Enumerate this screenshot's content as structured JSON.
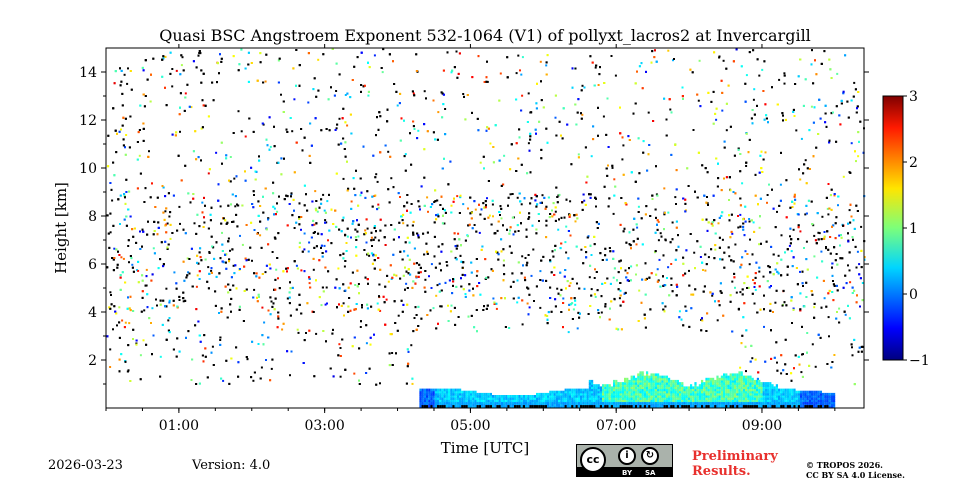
{
  "chart_data": {
    "type": "heatmap",
    "title": "Quasi BSC Angstroem Exponent 532-1064 (V1) of pollyxt_lacros2 at Invercargill",
    "xlabel": "Time [UTC]",
    "ylabel": "Height [km]",
    "xlim": [
      0.0,
      10.4
    ],
    "ylim": [
      0.0,
      15.0
    ],
    "x_ticks": [
      1,
      3,
      5,
      7,
      9
    ],
    "x_tick_labels": [
      "01:00",
      "03:00",
      "05:00",
      "07:00",
      "09:00"
    ],
    "y_ticks": [
      2,
      4,
      6,
      8,
      10,
      12,
      14
    ],
    "y_tick_labels": [
      "2",
      "4",
      "6",
      "8",
      "10",
      "12",
      "14"
    ],
    "colorbar": {
      "min": -1,
      "max": 3,
      "ticks": [
        -1,
        0,
        1,
        2,
        3
      ],
      "tick_labels": [
        "−1",
        "0",
        "1",
        "2",
        "3"
      ],
      "colormap": "jet"
    },
    "regions": [
      {
        "name": "boundary-layer aerosol",
        "t_start": 4.3,
        "t_end": 10.0,
        "height_bottom": 0.0,
        "height_top": 1.4,
        "typical_value": 0.4
      },
      {
        "name": "scattered noise",
        "t_start": 0.0,
        "t_end": 10.4,
        "height_bottom": 1.0,
        "height_top": 15.0,
        "typical_value": 1.0
      }
    ]
  },
  "footer": {
    "date": "2026-03-23",
    "version": "Version: 4.0",
    "preliminary_line1": "Preliminary",
    "preliminary_line2": "Results.",
    "copyright_line1": "© TROPOS 2026.",
    "copyright_line2": "CC BY SA 4.0 License."
  },
  "license_badge": {
    "cc": "cc",
    "by_label": "BY",
    "sa_label": "SA"
  }
}
